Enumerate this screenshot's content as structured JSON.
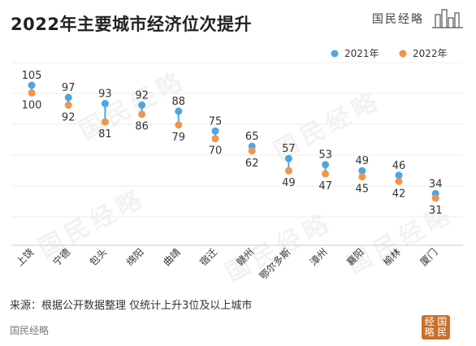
{
  "title": "2022年主要城市经济位次提升",
  "brand_logo_text": "国民经略",
  "source_text": "来源：根据公开数据整理 仅统计上升3位及以上城市",
  "footer_brand": "国民经略",
  "seal_chars": [
    "经",
    "国",
    "略",
    "民"
  ],
  "watermark_text": "国民经略",
  "colors": {
    "y2021": "#4ea6e0",
    "y2022": "#f0954a",
    "connector": "#4ea6e0"
  },
  "chart_data": {
    "type": "dumbbell",
    "title": "2022年主要城市经济位次提升",
    "categories": [
      "上饶",
      "宁德",
      "包头",
      "绵阳",
      "曲靖",
      "宿迁",
      "赣州",
      "鄂尔多斯",
      "漳州",
      "襄阳",
      "榆林",
      "厦门"
    ],
    "series": [
      {
        "name": "2021年",
        "values": [
          105,
          97,
          93,
          92,
          88,
          75,
          65,
          57,
          53,
          49,
          46,
          34
        ]
      },
      {
        "name": "2022年",
        "values": [
          100,
          92,
          81,
          86,
          79,
          70,
          62,
          49,
          47,
          45,
          42,
          31
        ]
      }
    ],
    "legend_position": "top-right",
    "grid": true,
    "axis_scale": "reversed-rank"
  }
}
